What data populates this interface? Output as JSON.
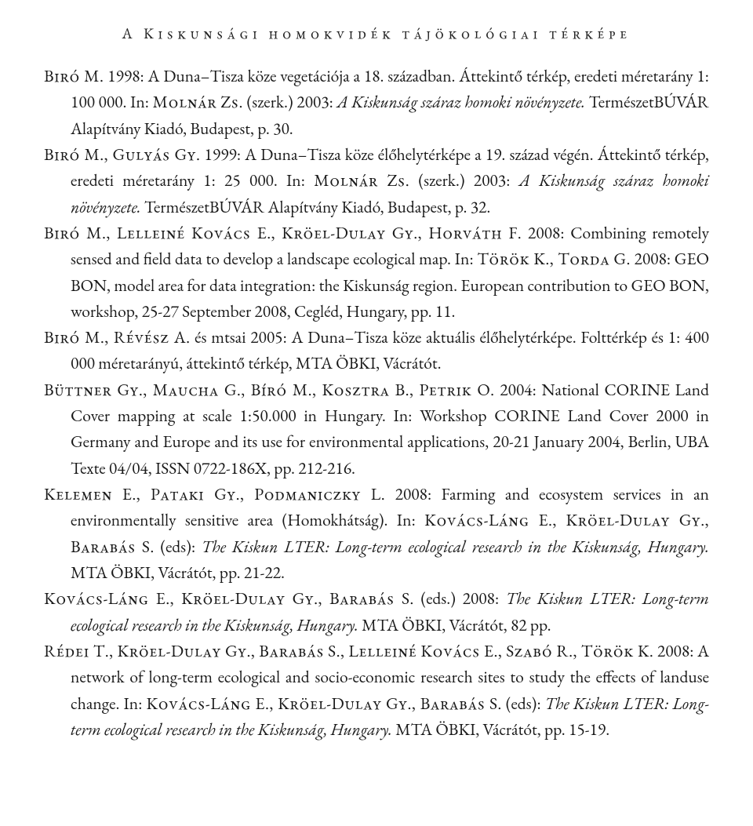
{
  "running_head": "A Kiskunsági homokvidék tájökológiai térképe",
  "refs": [
    {
      "parts": [
        {
          "cls": "sc",
          "t": "Biró M."
        },
        {
          "cls": "",
          "t": " 1998: A Duna–Tisza köze vegetációja a 18. században. Áttekintő térkép, eredeti méretarány 1: 100 000. In: "
        },
        {
          "cls": "sc",
          "t": "Molnár Zs."
        },
        {
          "cls": "",
          "t": " (szerk.) 2003: "
        },
        {
          "cls": "it",
          "t": "A Kiskunság száraz homoki növényzete."
        },
        {
          "cls": "",
          "t": " TermészetBÚVÁR Alapítvány Kiadó, Budapest, p. 30."
        }
      ]
    },
    {
      "parts": [
        {
          "cls": "sc",
          "t": "Biró M., Gulyás Gy."
        },
        {
          "cls": "",
          "t": " 1999: A Duna–Tisza köze élőhelytérképe a 19. század végén. Áttekintő térkép, eredeti méretarány 1: 25 000. In: "
        },
        {
          "cls": "sc",
          "t": "Molnár Zs."
        },
        {
          "cls": "",
          "t": " (szerk.) 2003: "
        },
        {
          "cls": "it",
          "t": "A Kiskunság száraz homoki növényzete."
        },
        {
          "cls": "",
          "t": " TermészetBÚVÁR Alapítvány Kiadó, Budapest, p. 32."
        }
      ]
    },
    {
      "parts": [
        {
          "cls": "sc",
          "t": "Biró M., Lelleiné Kovács E., Kröel-Dulay Gy., Horváth F."
        },
        {
          "cls": "",
          "t": " 2008: Combining remotely sensed and field data to develop a landscape ecological map. In: "
        },
        {
          "cls": "sc",
          "t": "Török K., Torda G."
        },
        {
          "cls": "",
          "t": " 2008: GEO BON, model area for data integration: the Kiskunság region. European contribution to GEO BON, workshop, 25-27 September 2008, Cegléd, Hungary, pp. 11."
        }
      ]
    },
    {
      "parts": [
        {
          "cls": "sc",
          "t": "Biró M., Révész A."
        },
        {
          "cls": "",
          "t": " és mtsai 2005: A Duna–Tisza köze aktuális élőhelytérképe. Folttérkép és 1: 400 000 méretarányú, áttekintő térkép, MTA ÖBKI, Vácrátót."
        }
      ]
    },
    {
      "parts": [
        {
          "cls": "sc",
          "t": "Büttner Gy., Maucha G., Bíró M., Kosztra B., Petrik O."
        },
        {
          "cls": "",
          "t": " 2004: National CORINE Land Cover mapping at scale 1:50.000 in Hungary. In: Workshop CORINE Land Cover 2000 in Germany and Europe and its use for environmental applications, 20-21 January 2004, Berlin, UBA Texte 04/04, ISSN 0722-186X, pp. 212-216."
        }
      ]
    },
    {
      "parts": [
        {
          "cls": "sc",
          "t": "Kelemen E., Pataki Gy., Podmaniczky L."
        },
        {
          "cls": "",
          "t": " 2008: Farming and ecosystem services in an environmentally sensitive area (Homokhátság). In: "
        },
        {
          "cls": "sc",
          "t": "Kovács-Láng E., Kröel-Dulay Gy., Barabás S."
        },
        {
          "cls": "",
          "t": " (eds): "
        },
        {
          "cls": "it",
          "t": "The Kiskun LTER: Long-term ecological research in the Kiskunság, Hungary."
        },
        {
          "cls": "",
          "t": " MTA ÖBKI, Vácrátót, pp. 21-22."
        }
      ]
    },
    {
      "parts": [
        {
          "cls": "sc",
          "t": "Kovács-Láng E., Kröel-Dulay Gy., Barabás S."
        },
        {
          "cls": "",
          "t": " (eds.) 2008: "
        },
        {
          "cls": "it",
          "t": "The Kiskun LTER: Long-term ecological research in the Kiskunság, Hungary."
        },
        {
          "cls": "",
          "t": " MTA ÖBKI, Vácrátót, 82 pp."
        }
      ]
    },
    {
      "parts": [
        {
          "cls": "sc",
          "t": "Rédei T., Kröel-Dulay Gy., Barabás S., Lelleiné Kovács E., Szabó R., Török K."
        },
        {
          "cls": "",
          "t": " 2008: A network of long-term ecological and socio-economic research sites to study the effects of landuse change. In: "
        },
        {
          "cls": "sc",
          "t": "Kovács-Láng E., Kröel-Dulay Gy., Barabás S."
        },
        {
          "cls": "",
          "t": " (eds): "
        },
        {
          "cls": "it",
          "t": "The Kiskun LTER: Long-term ecological research in the Kiskunság, Hungary."
        },
        {
          "cls": "",
          "t": " MTA ÖBKI, Vácrátót, pp. 15-19."
        }
      ]
    }
  ]
}
